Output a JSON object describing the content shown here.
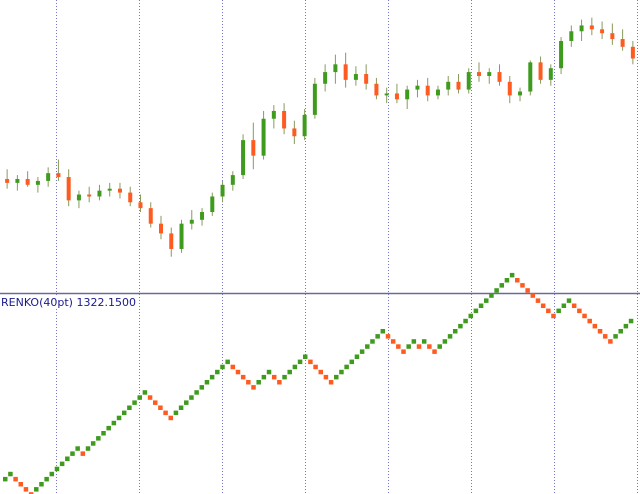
{
  "indicator": {
    "name": "RENKO(40pt)",
    "value": "1322.1500"
  },
  "colors": {
    "background": "#ffffff",
    "bull": "#3f9b1e",
    "bear": "#ff5a1f",
    "wick": "#8a9a5b",
    "separator": "#6a6a9a",
    "vgrid": "#3a3ac0",
    "label": "#1a1a8c"
  },
  "chart_data": [
    {
      "type": "candlestick",
      "title": "",
      "candles": [
        {
          "o": 1283,
          "h": 1288,
          "l": 1278,
          "c": 1281
        },
        {
          "o": 1281,
          "h": 1285,
          "l": 1277,
          "c": 1283
        },
        {
          "o": 1283,
          "h": 1287,
          "l": 1279,
          "c": 1280
        },
        {
          "o": 1280,
          "h": 1284,
          "l": 1276,
          "c": 1282
        },
        {
          "o": 1282,
          "h": 1289,
          "l": 1279,
          "c": 1286
        },
        {
          "o": 1286,
          "h": 1293,
          "l": 1282,
          "c": 1284
        },
        {
          "o": 1284,
          "h": 1288,
          "l": 1269,
          "c": 1272
        },
        {
          "o": 1272,
          "h": 1277,
          "l": 1268,
          "c": 1275
        },
        {
          "o": 1275,
          "h": 1279,
          "l": 1271,
          "c": 1274
        },
        {
          "o": 1274,
          "h": 1280,
          "l": 1272,
          "c": 1277
        },
        {
          "o": 1277,
          "h": 1281,
          "l": 1274,
          "c": 1278
        },
        {
          "o": 1278,
          "h": 1281,
          "l": 1273,
          "c": 1276
        },
        {
          "o": 1276,
          "h": 1279,
          "l": 1269,
          "c": 1271
        },
        {
          "o": 1271,
          "h": 1275,
          "l": 1266,
          "c": 1268
        },
        {
          "o": 1268,
          "h": 1271,
          "l": 1258,
          "c": 1260
        },
        {
          "o": 1260,
          "h": 1264,
          "l": 1252,
          "c": 1255
        },
        {
          "o": 1255,
          "h": 1258,
          "l": 1243,
          "c": 1247
        },
        {
          "o": 1247,
          "h": 1262,
          "l": 1245,
          "c": 1260
        },
        {
          "o": 1260,
          "h": 1267,
          "l": 1257,
          "c": 1262
        },
        {
          "o": 1262,
          "h": 1268,
          "l": 1259,
          "c": 1266
        },
        {
          "o": 1266,
          "h": 1276,
          "l": 1264,
          "c": 1274
        },
        {
          "o": 1274,
          "h": 1282,
          "l": 1271,
          "c": 1280
        },
        {
          "o": 1280,
          "h": 1287,
          "l": 1277,
          "c": 1285
        },
        {
          "o": 1285,
          "h": 1306,
          "l": 1283,
          "c": 1303
        },
        {
          "o": 1303,
          "h": 1312,
          "l": 1288,
          "c": 1295
        },
        {
          "o": 1295,
          "h": 1318,
          "l": 1293,
          "c": 1314
        },
        {
          "o": 1314,
          "h": 1321,
          "l": 1309,
          "c": 1318
        },
        {
          "o": 1318,
          "h": 1322,
          "l": 1306,
          "c": 1309
        },
        {
          "o": 1309,
          "h": 1313,
          "l": 1301,
          "c": 1305
        },
        {
          "o": 1305,
          "h": 1319,
          "l": 1303,
          "c": 1316
        },
        {
          "o": 1316,
          "h": 1335,
          "l": 1314,
          "c": 1332
        },
        {
          "o": 1332,
          "h": 1342,
          "l": 1328,
          "c": 1338
        },
        {
          "o": 1338,
          "h": 1347,
          "l": 1332,
          "c": 1342
        },
        {
          "o": 1342,
          "h": 1348,
          "l": 1330,
          "c": 1334
        },
        {
          "o": 1334,
          "h": 1341,
          "l": 1331,
          "c": 1337
        },
        {
          "o": 1337,
          "h": 1342,
          "l": 1329,
          "c": 1332
        },
        {
          "o": 1332,
          "h": 1335,
          "l": 1324,
          "c": 1326
        },
        {
          "o": 1326,
          "h": 1330,
          "l": 1322,
          "c": 1327
        },
        {
          "o": 1327,
          "h": 1332,
          "l": 1322,
          "c": 1324
        },
        {
          "o": 1324,
          "h": 1331,
          "l": 1319,
          "c": 1329
        },
        {
          "o": 1329,
          "h": 1334,
          "l": 1325,
          "c": 1331
        },
        {
          "o": 1331,
          "h": 1335,
          "l": 1323,
          "c": 1326
        },
        {
          "o": 1326,
          "h": 1331,
          "l": 1324,
          "c": 1329
        },
        {
          "o": 1329,
          "h": 1336,
          "l": 1326,
          "c": 1333
        },
        {
          "o": 1333,
          "h": 1337,
          "l": 1327,
          "c": 1329
        },
        {
          "o": 1329,
          "h": 1340,
          "l": 1327,
          "c": 1338
        },
        {
          "o": 1338,
          "h": 1343,
          "l": 1333,
          "c": 1336
        },
        {
          "o": 1336,
          "h": 1340,
          "l": 1332,
          "c": 1338
        },
        {
          "o": 1338,
          "h": 1342,
          "l": 1331,
          "c": 1333
        },
        {
          "o": 1333,
          "h": 1336,
          "l": 1322,
          "c": 1326
        },
        {
          "o": 1326,
          "h": 1330,
          "l": 1323,
          "c": 1328
        },
        {
          "o": 1328,
          "h": 1344,
          "l": 1326,
          "c": 1343
        },
        {
          "o": 1343,
          "h": 1346,
          "l": 1332,
          "c": 1334
        },
        {
          "o": 1334,
          "h": 1342,
          "l": 1331,
          "c": 1340
        },
        {
          "o": 1340,
          "h": 1356,
          "l": 1337,
          "c": 1354
        },
        {
          "o": 1354,
          "h": 1362,
          "l": 1351,
          "c": 1359
        },
        {
          "o": 1359,
          "h": 1365,
          "l": 1354,
          "c": 1362
        },
        {
          "o": 1362,
          "h": 1366,
          "l": 1357,
          "c": 1360
        },
        {
          "o": 1360,
          "h": 1364,
          "l": 1355,
          "c": 1358
        },
        {
          "o": 1358,
          "h": 1363,
          "l": 1352,
          "c": 1355
        },
        {
          "o": 1355,
          "h": 1360,
          "l": 1349,
          "c": 1351
        },
        {
          "o": 1351,
          "h": 1354,
          "l": 1342,
          "c": 1345
        }
      ]
    },
    {
      "type": "renko",
      "title": "RENKO(40pt)",
      "value": "1322.1500",
      "brick_size": 40,
      "bricks": [
        1,
        1,
        -1,
        -1,
        -1,
        -1,
        1,
        1,
        1,
        1,
        1,
        1,
        1,
        1,
        1,
        -1,
        1,
        1,
        1,
        1,
        1,
        1,
        1,
        1,
        1,
        1,
        1,
        1,
        -1,
        -1,
        -1,
        -1,
        -1,
        1,
        1,
        1,
        1,
        1,
        1,
        1,
        1,
        1,
        1,
        1,
        -1,
        -1,
        -1,
        -1,
        -1,
        1,
        1,
        1,
        -1,
        -1,
        1,
        1,
        1,
        1,
        1,
        -1,
        -1,
        -1,
        -1,
        -1,
        1,
        1,
        1,
        1,
        1,
        1,
        1,
        1,
        1,
        1,
        -1,
        -1,
        -1,
        -1,
        1,
        1,
        -1,
        1,
        -1,
        -1,
        1,
        1,
        1,
        1,
        1,
        1,
        1,
        1,
        1,
        1,
        1,
        1,
        1,
        1,
        1,
        -1,
        -1,
        -1,
        -1,
        -1,
        -1,
        -1,
        -1,
        1,
        1,
        1,
        -1,
        -1,
        -1,
        -1,
        -1,
        -1,
        -1,
        -1,
        1,
        1,
        1,
        1
      ]
    }
  ]
}
